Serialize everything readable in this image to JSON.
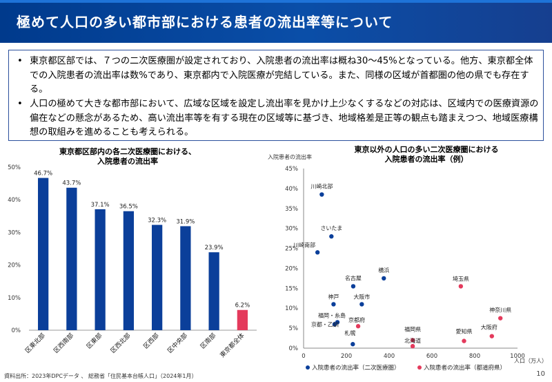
{
  "title": "極めて人口の多い都市部における患者の流出率等について",
  "bullets": [
    "東京都区部では、７つの二次医療圏が設定されており、入院患者の流出率は概ね30～45%となっている。他方、東京都全体での入院患者の流出率は数%であり、東京都内で入院医療が完結している。また、同様の区域が首都圏の他の県でも存在する。",
    "人口の極めて大きな都市部において、広域な区域を設定し流出率を見かけ上少なくするなどの対応は、区域内での医療資源の偏在などの懸念があるため、高い流出率等を有する現在の区域等に基づき、地域格差是正等の観点も踏まえつつ、地域医療構想の取組みを進めることも考えられる。"
  ],
  "bullet_marker": "•",
  "left_chart_title": [
    "東京都区部内の各二次医療圏における、",
    "入院患者の流出率"
  ],
  "right_chart_title": [
    "東京以外の人口の多い二次医療圏における",
    "入院患者の流出率（例）"
  ],
  "source_note": "資料出所：2023年DPCデータ 、 総務省「住民基本台帳人口」（2024年1月）",
  "page_number": "10",
  "colors": {
    "bar": "#0b3f9a",
    "bar_highlight": "#e43a5c",
    "title_bg": "#0a4ea8",
    "point_medical": "#0b3f9a",
    "point_prefecture": "#e43a5c"
  },
  "chart_data": [
    {
      "type": "bar",
      "categories": [
        "区東北部",
        "区西南部",
        "区東部",
        "区西北部",
        "区西部",
        "区中央部",
        "区南部",
        "東京都全体"
      ],
      "values": [
        46.7,
        43.7,
        37.1,
        36.5,
        32.3,
        31.9,
        23.9,
        6.2
      ],
      "value_labels": [
        "46.7%",
        "43.7%",
        "37.1%",
        "36.5%",
        "32.3%",
        "31.9%",
        "23.9%",
        "6.2%"
      ],
      "highlight_index": 7,
      "ylim": [
        0,
        50
      ],
      "yticks": [
        0,
        10,
        20,
        30,
        40,
        50
      ],
      "ytick_labels": [
        "0%",
        "10%",
        "20%",
        "30%",
        "40%",
        "50%"
      ],
      "grid": false
    },
    {
      "type": "scatter",
      "ylabel": "入院患者の流出率",
      "xlabel": "人口（万人）",
      "xlim": [
        0,
        1000
      ],
      "ylim": [
        0,
        45
      ],
      "xticks": [
        0,
        200,
        400,
        600,
        800,
        1000
      ],
      "xtick_labels": [
        "0",
        "200",
        "400",
        "600",
        "800",
        "1000"
      ],
      "yticks": [
        0,
        5,
        10,
        15,
        20,
        25,
        30,
        35,
        40,
        45
      ],
      "ytick_labels": [
        "0%",
        "5%",
        "10%",
        "15%",
        "20%",
        "25%",
        "30%",
        "35%",
        "40%",
        "45%"
      ],
      "series": [
        {
          "name": "入院患者の流出率（二次医療圏）",
          "color": "#0b3f9a",
          "points": [
            {
              "label": "川崎北部",
              "x": 85,
              "y": 38.5
            },
            {
              "label": "さいたま",
              "x": 130,
              "y": 28
            },
            {
              "label": "川崎南部",
              "x": 65,
              "y": 24
            },
            {
              "label": "横浜",
              "x": 375,
              "y": 17.5
            },
            {
              "label": "名古屋",
              "x": 232,
              "y": 15.5
            },
            {
              "label": "大阪市",
              "x": 272,
              "y": 11
            },
            {
              "label": "神戸",
              "x": 140,
              "y": 11
            },
            {
              "label": "福岡・糸島",
              "x": 158,
              "y": 6.5
            },
            {
              "label": "京都・乙訓",
              "x": 145,
              "y": 6
            },
            {
              "label": "札幌",
              "x": 230,
              "y": 1
            }
          ]
        },
        {
          "name": "入院患者の流出率（都道府県）",
          "color": "#e43a5c",
          "points": [
            {
              "label": "埼玉県",
              "x": 735,
              "y": 15.5
            },
            {
              "label": "神奈川県",
              "x": 920,
              "y": 7.5
            },
            {
              "label": "京都府",
              "x": 255,
              "y": 5.5
            },
            {
              "label": "愛知県",
              "x": 750,
              "y": 1.8
            },
            {
              "label": "大阪府",
              "x": 880,
              "y": 3
            },
            {
              "label": "福岡県",
              "x": 510,
              "y": 2
            },
            {
              "label": "北海道",
              "x": 510,
              "y": 0.5
            }
          ]
        }
      ],
      "legend_position": "bottom"
    }
  ]
}
